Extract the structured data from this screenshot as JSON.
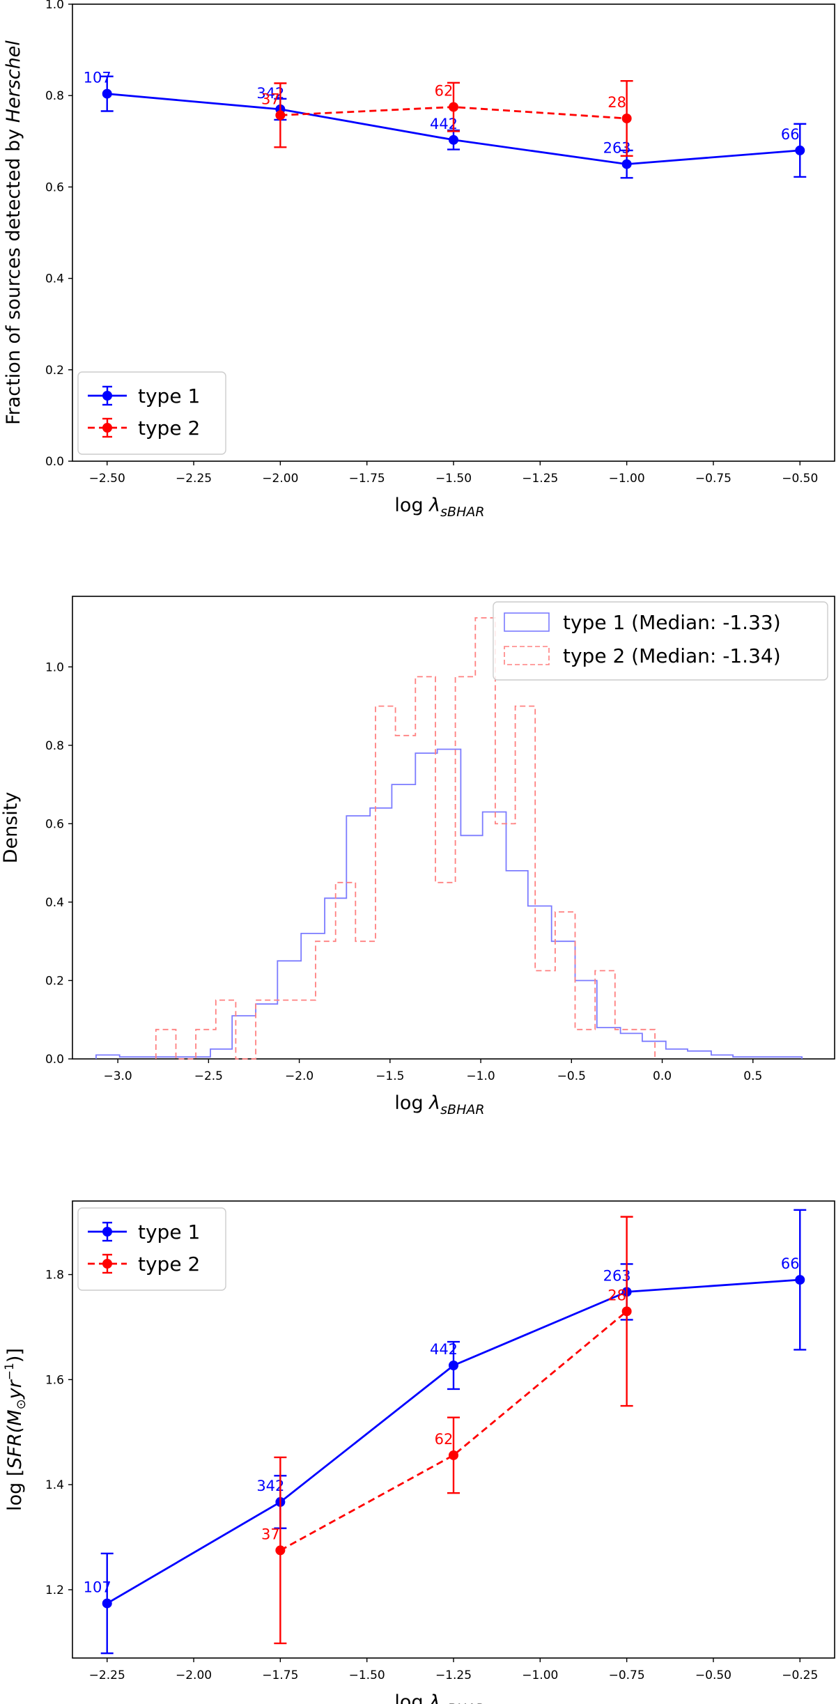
{
  "colors": {
    "type1": "#0000ff",
    "type2": "#ff0000",
    "type1_hist": "#7b7bff",
    "type2_hist": "#ff8080"
  },
  "chart_data": [
    {
      "type": "line",
      "title": "",
      "xlabel": "log",
      "xlabel_symbol": "λ",
      "xlabel_sub": "sBHAR",
      "ylabel": "Fraction of sources detected by",
      "ylabel_italic": "Herschel",
      "xlim": [
        -2.6,
        -0.4
      ],
      "ylim": [
        0.0,
        1.0
      ],
      "xticks": [
        -2.5,
        -2.25,
        -2.0,
        -1.75,
        -1.5,
        -1.25,
        -1.0,
        -0.75,
        -0.5
      ],
      "xtick_labels": [
        "−2.50",
        "−2.25",
        "−2.00",
        "−1.75",
        "−1.50",
        "−1.25",
        "−1.00",
        "−0.75",
        "−0.50"
      ],
      "yticks": [
        0.0,
        0.2,
        0.4,
        0.6,
        0.8,
        1.0
      ],
      "ytick_labels": [
        "0.0",
        "0.2",
        "0.4",
        "0.6",
        "0.8",
        "1.0"
      ],
      "legend_position": "bottom-left",
      "series": [
        {
          "name": "type 1",
          "style": "solid",
          "color": "#0000ff",
          "x": [
            -2.5,
            -2.0,
            -1.5,
            -1.0,
            -0.5
          ],
          "y": [
            0.804,
            0.77,
            0.703,
            0.65,
            0.68
          ],
          "yerr": [
            0.038,
            0.023,
            0.021,
            0.03,
            0.058
          ],
          "labels": [
            "107",
            "342",
            "442",
            "263",
            "66"
          ]
        },
        {
          "name": "type 2",
          "style": "dashed",
          "color": "#ff0000",
          "x": [
            -2.0,
            -1.5,
            -1.0
          ],
          "y": [
            0.757,
            0.775,
            0.75
          ],
          "yerr": [
            0.07,
            0.053,
            0.082
          ],
          "labels": [
            "37",
            "62",
            "28"
          ]
        }
      ]
    },
    {
      "type": "histogram",
      "title": "",
      "xlabel": "log",
      "xlabel_symbol": "λ",
      "xlabel_sub": "sBHAR",
      "ylabel": "Density",
      "xlim": [
        -3.25,
        0.95
      ],
      "ylim": [
        0.0,
        1.18
      ],
      "xticks": [
        -3.0,
        -2.5,
        -2.0,
        -1.5,
        -1.0,
        -0.5,
        0.0,
        0.5
      ],
      "xtick_labels": [
        "−3.0",
        "−2.5",
        "−2.0",
        "−1.5",
        "−1.0",
        "−0.5",
        "0.0",
        "0.5"
      ],
      "yticks": [
        0.0,
        0.2,
        0.4,
        0.6,
        0.8,
        1.0
      ],
      "ytick_labels": [
        "0.0",
        "0.2",
        "0.4",
        "0.6",
        "0.8",
        "1.0"
      ],
      "legend_position": "top-right",
      "series": [
        {
          "name": "type 1 (Median: -1.33)",
          "style": "solid",
          "color": "#7b7bff",
          "edges": [
            -3.12,
            -2.99,
            -2.87,
            -2.74,
            -2.62,
            -2.49,
            -2.37,
            -2.24,
            -2.12,
            -1.99,
            -1.86,
            -1.74,
            -1.61,
            -1.49,
            -1.36,
            -1.24,
            -1.11,
            -0.99,
            -0.86,
            -0.74,
            -0.61,
            -0.48,
            -0.36,
            -0.23,
            -0.11,
            0.02,
            0.14,
            0.27,
            0.39,
            0.52,
            0.65,
            0.77
          ],
          "counts": [
            0.01,
            0.005,
            0.005,
            0.005,
            0.005,
            0.025,
            0.11,
            0.14,
            0.25,
            0.32,
            0.41,
            0.62,
            0.64,
            0.7,
            0.78,
            0.79,
            0.57,
            0.63,
            0.48,
            0.39,
            0.3,
            0.2,
            0.08,
            0.065,
            0.045,
            0.025,
            0.02,
            0.01,
            0.005,
            0.005,
            0.005
          ]
        },
        {
          "name": "type 2 (Median: -1.34)",
          "style": "dashed",
          "color": "#ff8080",
          "edges": [
            -2.79,
            -2.68,
            -2.57,
            -2.46,
            -2.35,
            -2.24,
            -2.13,
            -2.02,
            -1.91,
            -1.8,
            -1.69,
            -1.58,
            -1.47,
            -1.36,
            -1.25,
            -1.14,
            -1.03,
            -0.92,
            -0.81,
            -0.7,
            -0.59,
            -0.48,
            -0.37,
            -0.26,
            -0.15,
            -0.04
          ],
          "counts": [
            0.075,
            0.0,
            0.075,
            0.15,
            0.0,
            0.15,
            0.15,
            0.15,
            0.3,
            0.45,
            0.3,
            0.9,
            0.825,
            0.975,
            0.45,
            0.975,
            1.125,
            0.6,
            0.9,
            0.225,
            0.375,
            0.075,
            0.225,
            0.075,
            0.075
          ]
        }
      ]
    },
    {
      "type": "line",
      "title": "",
      "xlabel": "log",
      "xlabel_symbol": "λ",
      "xlabel_sub": "sBHAR",
      "ylabel": "log [SFR(M⊙yr⁻¹)]",
      "ylabel_parts": {
        "prefix": "log [",
        "sfr": "SFR",
        "m": "M",
        "sun": "⊙",
        "yr": "yr",
        "exp": "−1",
        "suffix": ")]"
      },
      "xlim": [
        -2.35,
        -0.15
      ],
      "ylim": [
        1.07,
        1.94
      ],
      "xticks": [
        -2.25,
        -2.0,
        -1.75,
        -1.5,
        -1.25,
        -1.0,
        -0.75,
        -0.5,
        -0.25
      ],
      "xtick_labels": [
        "−2.25",
        "−2.00",
        "−1.75",
        "−1.50",
        "−1.25",
        "−1.00",
        "−0.75",
        "−0.50",
        "−0.25"
      ],
      "yticks": [
        1.2,
        1.4,
        1.6,
        1.8
      ],
      "ytick_labels": [
        "1.2",
        "1.4",
        "1.6",
        "1.8"
      ],
      "legend_position": "top-left",
      "series": [
        {
          "name": "type 1",
          "style": "solid",
          "color": "#0000ff",
          "x": [
            -2.25,
            -1.75,
            -1.25,
            -0.75,
            -0.25
          ],
          "y": [
            1.174,
            1.367,
            1.627,
            1.767,
            1.79
          ],
          "yerr": [
            0.095,
            0.05,
            0.045,
            0.053,
            0.133
          ],
          "labels": [
            "107",
            "342",
            "442",
            "263",
            "66"
          ]
        },
        {
          "name": "type 2",
          "style": "dashed",
          "color": "#ff0000",
          "x": [
            -1.75,
            -1.25,
            -0.75
          ],
          "y": [
            1.275,
            1.456,
            1.73
          ],
          "yerr": [
            0.177,
            0.072,
            0.18
          ],
          "labels": [
            "37",
            "62",
            "28"
          ]
        }
      ]
    }
  ]
}
